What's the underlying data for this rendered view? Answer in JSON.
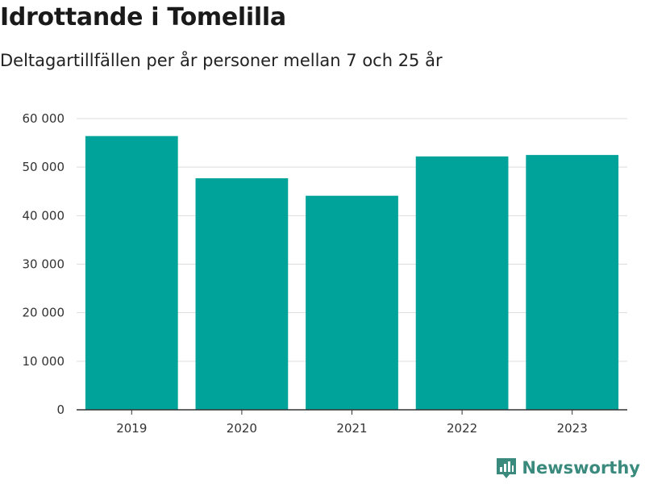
{
  "title": "Idrottande i Tomelilla",
  "subtitle": "Deltagartillfällen per år personer mellan 7 och 25 år",
  "brand": {
    "name": "Newsworthy",
    "icon": "newsworthy-logo-icon",
    "color": "#3a8a7e"
  },
  "colors": {
    "bar": "#00a39a",
    "grid": "#dddddd",
    "axis": "#333333"
  },
  "chart_data": {
    "type": "bar",
    "title": "Idrottande i Tomelilla",
    "subtitle": "Deltagartillfällen per år personer mellan 7 och 25 år",
    "categories": [
      "2019",
      "2020",
      "2021",
      "2022",
      "2023"
    ],
    "values": [
      56400,
      47700,
      44100,
      52200,
      52500
    ],
    "xlabel": "",
    "ylabel": "",
    "ylim": [
      0,
      60000
    ],
    "yticks": [
      0,
      10000,
      20000,
      30000,
      40000,
      50000,
      60000
    ],
    "ytick_labels": [
      "0",
      "10 000",
      "20 000",
      "30 000",
      "40 000",
      "50 000",
      "60 000"
    ],
    "grid": true,
    "legend": "none"
  }
}
